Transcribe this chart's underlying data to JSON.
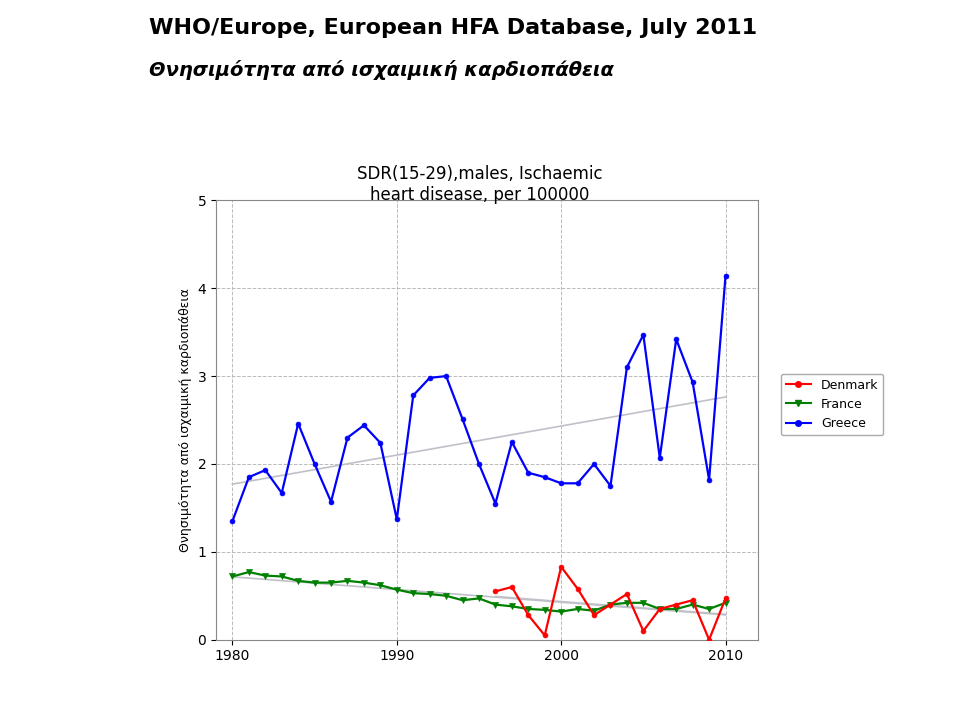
{
  "title_line1": "WHO/Europe, European HFA Database, July 2011",
  "title_line2": "Θνησιμότητα από ισχαιμική καρδιοπάθεια",
  "subtitle": "SDR(15-29),males, Ischaemic\nheart disease, per 100000",
  "ylabel": "Θνησιμότητα από ισχαιμική καρδιοπάθεια",
  "xlim": [
    1979,
    2012
  ],
  "ylim": [
    0,
    5
  ],
  "yticks": [
    0,
    1,
    2,
    3,
    4,
    5
  ],
  "xticks": [
    1980,
    1990,
    2000,
    2010
  ],
  "greece_years": [
    1980,
    1981,
    1982,
    1983,
    1984,
    1985,
    1986,
    1987,
    1988,
    1989,
    1990,
    1991,
    1992,
    1993,
    1994,
    1995,
    1996,
    1997,
    1998,
    1999,
    2000,
    2001,
    2002,
    2003,
    2004,
    2005,
    2006,
    2007,
    2008,
    2009,
    2010
  ],
  "greece_values": [
    1.35,
    1.85,
    1.93,
    1.67,
    2.46,
    2.0,
    1.57,
    2.3,
    2.44,
    2.24,
    1.37,
    2.78,
    2.98,
    3.0,
    2.51,
    2.0,
    1.55,
    2.25,
    1.9,
    1.85,
    1.78,
    1.78,
    2.0,
    1.75,
    3.1,
    3.47,
    2.07,
    3.42,
    2.93,
    1.82,
    4.14
  ],
  "france_years": [
    1980,
    1981,
    1982,
    1983,
    1984,
    1985,
    1986,
    1987,
    1988,
    1989,
    1990,
    1991,
    1992,
    1993,
    1994,
    1995,
    1996,
    1997,
    1998,
    1999,
    2000,
    2001,
    2002,
    2003,
    2004,
    2005,
    2006,
    2007,
    2008,
    2009,
    2010
  ],
  "france_values": [
    0.72,
    0.77,
    0.73,
    0.72,
    0.67,
    0.65,
    0.65,
    0.67,
    0.65,
    0.62,
    0.57,
    0.53,
    0.52,
    0.5,
    0.45,
    0.47,
    0.4,
    0.38,
    0.35,
    0.34,
    0.32,
    0.35,
    0.33,
    0.4,
    0.42,
    0.42,
    0.35,
    0.35,
    0.4,
    0.35,
    0.42
  ],
  "denmark_years": [
    1996,
    1997,
    1998,
    1999,
    2000,
    2001,
    2002,
    2003,
    2004,
    2005,
    2006,
    2007,
    2008,
    2009,
    2010
  ],
  "denmark_values": [
    0.55,
    0.6,
    0.28,
    0.05,
    0.83,
    0.58,
    0.28,
    0.4,
    0.52,
    0.1,
    0.35,
    0.4,
    0.45,
    0.0,
    0.47
  ],
  "greece_color": "#0000FF",
  "france_color": "#008000",
  "denmark_color": "#FF0000",
  "trendline_color": "#c0c0c8",
  "fig_bg": "#ffffff",
  "header_bg": "#ffffff",
  "plot_area_bg": "#ffffff",
  "left_panel_bg": "#dce8f0",
  "rule_color": "#404040",
  "title1_fontsize": 16,
  "title2_fontsize": 14,
  "subtitle_fontsize": 12,
  "ylabel_fontsize": 9,
  "tick_fontsize": 10,
  "legend_fontsize": 9
}
